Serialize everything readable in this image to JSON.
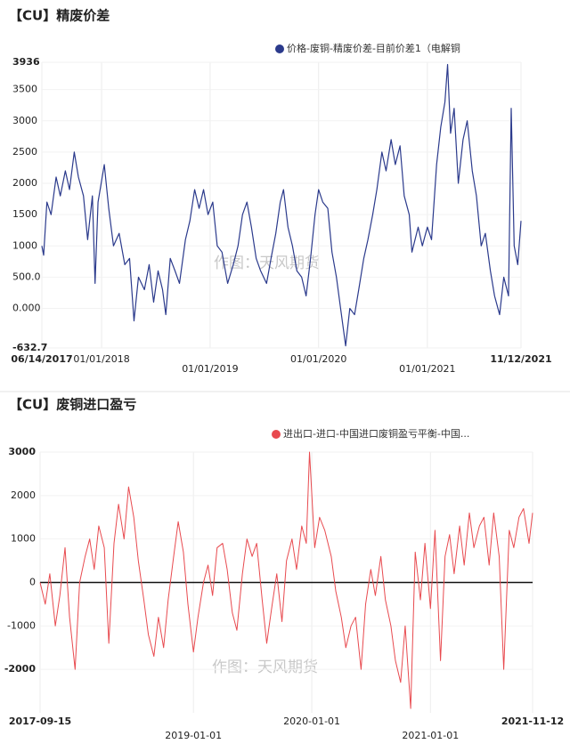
{
  "chart_data": [
    {
      "type": "line",
      "title": "【CU】精废价差",
      "annotation": "作图：天风期货",
      "grid": true,
      "x": [
        "2017-06-14",
        "2017-06-20",
        "2017-07-01",
        "2017-07-15",
        "2017-08-01",
        "2017-08-15",
        "2017-09-01",
        "2017-09-15",
        "2017-10-01",
        "2017-10-15",
        "2017-11-01",
        "2017-11-15",
        "2017-12-01",
        "2017-12-10",
        "2017-12-20",
        "2018-01-10",
        "2018-01-25",
        "2018-02-10",
        "2018-03-01",
        "2018-03-20",
        "2018-04-05",
        "2018-04-20",
        "2018-05-05",
        "2018-05-25",
        "2018-06-10",
        "2018-06-25",
        "2018-07-10",
        "2018-07-25",
        "2018-08-05",
        "2018-08-20",
        "2018-09-05",
        "2018-09-20",
        "2018-10-10",
        "2018-10-25",
        "2018-11-10",
        "2018-11-25",
        "2018-12-10",
        "2018-12-25",
        "2019-01-10",
        "2019-01-25",
        "2019-02-10",
        "2019-03-01",
        "2019-03-20",
        "2019-04-05",
        "2019-04-20",
        "2019-05-05",
        "2019-05-20",
        "2019-06-05",
        "2019-06-20",
        "2019-07-10",
        "2019-07-25",
        "2019-08-10",
        "2019-08-25",
        "2019-09-05",
        "2019-09-20",
        "2019-10-05",
        "2019-10-20",
        "2019-11-05",
        "2019-11-20",
        "2019-12-05",
        "2019-12-20",
        "2020-01-01",
        "2020-01-15",
        "2020-02-01",
        "2020-02-15",
        "2020-03-01",
        "2020-03-15",
        "2020-04-01",
        "2020-04-15",
        "2020-05-01",
        "2020-05-15",
        "2020-06-01",
        "2020-06-15",
        "2020-07-01",
        "2020-07-15",
        "2020-08-01",
        "2020-08-15",
        "2020-09-01",
        "2020-09-15",
        "2020-10-01",
        "2020-10-15",
        "2020-11-01",
        "2020-11-10",
        "2020-12-01",
        "2020-12-15",
        "2021-01-01",
        "2021-01-15",
        "2021-02-01",
        "2021-02-15",
        "2021-03-01",
        "2021-03-10",
        "2021-03-20",
        "2021-04-01",
        "2021-04-15",
        "2021-05-01",
        "2021-05-15",
        "2021-06-01",
        "2021-06-15",
        "2021-07-01",
        "2021-07-15",
        "2021-08-01",
        "2021-08-15",
        "2021-09-01",
        "2021-09-15",
        "2021-10-01",
        "2021-10-10",
        "2021-10-20",
        "2021-11-01",
        "2021-11-12"
      ],
      "series": [
        {
          "name": "价格-废铜-精废价差-目前价差1（电解铜",
          "color": "#2b3a8c",
          "values": [
            1000,
            850,
            1700,
            1500,
            2100,
            1800,
            2200,
            1900,
            2500,
            2100,
            1800,
            1100,
            1800,
            400,
            1700,
            2300,
            1600,
            1000,
            1200,
            700,
            800,
            -200,
            500,
            300,
            700,
            100,
            600,
            300,
            -100,
            800,
            600,
            400,
            1100,
            1400,
            1900,
            1600,
            1900,
            1500,
            1700,
            1000,
            900,
            400,
            700,
            1000,
            1500,
            1700,
            1300,
            800,
            600,
            400,
            800,
            1200,
            1700,
            1900,
            1300,
            1000,
            600,
            500,
            200,
            800,
            1500,
            1900,
            1700,
            1600,
            900,
            500,
            0,
            -600,
            0,
            -100,
            300,
            800,
            1100,
            1500,
            1900,
            2500,
            2200,
            2700,
            2300,
            2600,
            1800,
            1500,
            900,
            1300,
            1000,
            1300,
            1100,
            2300,
            2900,
            3300,
            3900,
            2800,
            3200,
            2000,
            2700,
            3000,
            2200,
            1800,
            1000,
            1200,
            600,
            200,
            -100,
            500,
            200,
            3200,
            1000,
            700,
            1400
          ]
        }
      ],
      "xlim": [
        "2017-06-14",
        "2021-11-12"
      ],
      "xticks": [
        {
          "value": "2017-06-14",
          "label": "06/14/2017"
        },
        {
          "value": "2018-01-01",
          "label": "01/01/2018"
        },
        {
          "value": "2019-01-01",
          "label": "01/01/2019"
        },
        {
          "value": "2020-01-01",
          "label": "01/01/2020"
        },
        {
          "value": "2021-01-01",
          "label": "01/01/2021"
        },
        {
          "value": "2021-11-12",
          "label": "11/12/2021"
        }
      ],
      "ylim": [
        -632.7,
        3936
      ],
      "yticks": [
        -632.7,
        {
          "value": 0,
          "label": "0.000"
        },
        {
          "value": 500,
          "label": "500.0"
        },
        1000,
        1500,
        2000,
        2500,
        3000,
        3500,
        3936
      ]
    },
    {
      "type": "line",
      "title": "【CU】废铜进口盈亏",
      "annotation": "作图：天风期货",
      "grid": true,
      "x": [
        "2017-09-15",
        "2017-10-01",
        "2017-10-15",
        "2017-11-01",
        "2017-11-15",
        "2017-12-01",
        "2017-12-15",
        "2018-01-01",
        "2018-01-15",
        "2018-02-01",
        "2018-02-15",
        "2018-03-01",
        "2018-03-15",
        "2018-04-01",
        "2018-04-15",
        "2018-05-01",
        "2018-05-15",
        "2018-06-01",
        "2018-06-15",
        "2018-07-01",
        "2018-07-15",
        "2018-08-01",
        "2018-08-15",
        "2018-09-01",
        "2018-09-15",
        "2018-10-01",
        "2018-10-15",
        "2018-11-01",
        "2018-11-15",
        "2018-12-01",
        "2018-12-15",
        "2019-01-01",
        "2019-01-15",
        "2019-02-01",
        "2019-02-15",
        "2019-03-01",
        "2019-03-15",
        "2019-04-01",
        "2019-04-15",
        "2019-05-01",
        "2019-05-15",
        "2019-06-01",
        "2019-06-15",
        "2019-07-01",
        "2019-07-15",
        "2019-08-01",
        "2019-08-15",
        "2019-09-01",
        "2019-09-15",
        "2019-10-01",
        "2019-10-15",
        "2019-11-01",
        "2019-11-15",
        "2019-12-01",
        "2019-12-15",
        "2019-12-25",
        "2020-01-10",
        "2020-01-25",
        "2020-02-10",
        "2020-03-01",
        "2020-03-15",
        "2020-04-01",
        "2020-04-15",
        "2020-05-01",
        "2020-05-15",
        "2020-06-01",
        "2020-06-15",
        "2020-07-01",
        "2020-07-15",
        "2020-08-01",
        "2020-08-15",
        "2020-09-01",
        "2020-09-15",
        "2020-10-01",
        "2020-10-15",
        "2020-11-01",
        "2020-11-15",
        "2020-12-01",
        "2020-12-15",
        "2021-01-01",
        "2021-01-15",
        "2021-02-01",
        "2021-02-15",
        "2021-03-01",
        "2021-03-15",
        "2021-04-01",
        "2021-04-15",
        "2021-05-01",
        "2021-05-15",
        "2021-06-01",
        "2021-06-15",
        "2021-07-01",
        "2021-07-15",
        "2021-08-01",
        "2021-08-15",
        "2021-09-01",
        "2021-09-15",
        "2021-10-01",
        "2021-10-15",
        "2021-11-01",
        "2021-11-12"
      ],
      "series": [
        {
          "name": "进出口-进口-中国进口废铜盈亏平衡-中国...",
          "color": "#e84a4f",
          "values": [
            0,
            -500,
            200,
            -1000,
            -300,
            800,
            -800,
            -2000,
            0,
            600,
            1000,
            300,
            1300,
            800,
            -1400,
            900,
            1800,
            1000,
            2200,
            1500,
            500,
            -400,
            -1200,
            -1700,
            -800,
            -1500,
            -400,
            600,
            1400,
            700,
            -500,
            -1600,
            -800,
            0,
            400,
            -300,
            800,
            900,
            300,
            -700,
            -1100,
            200,
            1000,
            600,
            900,
            -400,
            -1400,
            -500,
            200,
            -900,
            500,
            1000,
            300,
            1300,
            900,
            3000,
            800,
            1500,
            1200,
            600,
            -200,
            -800,
            -1500,
            -1000,
            -800,
            -2000,
            -500,
            300,
            -300,
            600,
            -400,
            -1000,
            -1800,
            -2300,
            -1000,
            -2900,
            700,
            -400,
            900,
            -600,
            1200,
            -1800,
            600,
            1100,
            200,
            1300,
            400,
            1600,
            800,
            1300,
            1500,
            400,
            1600,
            600,
            -2000,
            1200,
            800,
            1500,
            1700,
            900,
            1600
          ]
        }
      ],
      "xlim": [
        "2017-09-15",
        "2021-11-12"
      ],
      "xticks": [
        "2017-09-15",
        "2019-01-01",
        "2020-01-01",
        "2021-01-01",
        "2021-11-12"
      ],
      "ylim": [
        -3000,
        3000
      ],
      "yticks": [
        -2000,
        -1000,
        0,
        1000,
        2000,
        3000
      ]
    }
  ]
}
